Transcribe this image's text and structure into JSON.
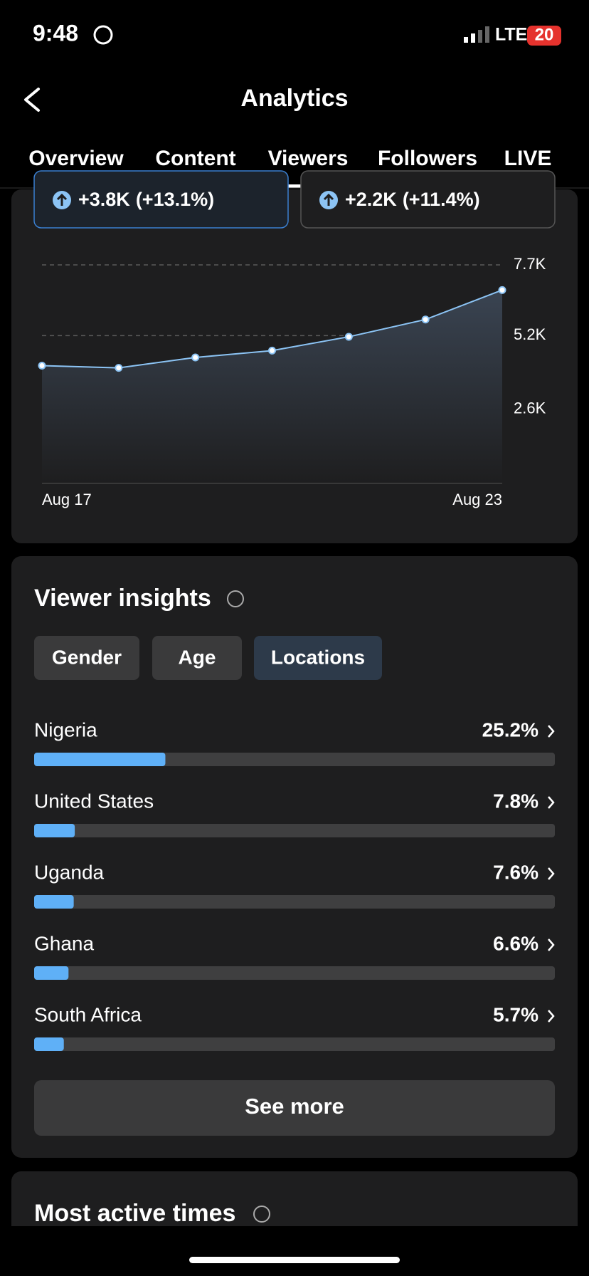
{
  "status": {
    "time": "9:48",
    "network": "LTE",
    "battery": "20"
  },
  "header": {
    "title": "Analytics"
  },
  "tabs": [
    "Overview",
    "Content",
    "Viewers",
    "Followers",
    "LIVE"
  ],
  "active_tab": 2,
  "stat_cards": [
    {
      "change": "+3.8K",
      "percent": "(+13.1%)"
    },
    {
      "change": "+2.2K",
      "percent": "(+11.4%)"
    }
  ],
  "chart_data": {
    "type": "line",
    "x": [
      "Aug 17",
      null,
      null,
      null,
      null,
      null,
      "Aug 23"
    ],
    "series": [
      {
        "name": "Viewers",
        "color": "#8cc4f5",
        "values": [
          4140,
          4060,
          4430,
          4670,
          5160,
          5770,
          6810
        ]
      }
    ],
    "ylim": [
      0,
      7700
    ],
    "yticks": [
      {
        "value": 2600,
        "label": "2.6K"
      },
      {
        "value": 5200,
        "label": "5.2K"
      },
      {
        "value": 7700,
        "label": "7.7K"
      }
    ],
    "grid": true
  },
  "insights": {
    "title": "Viewer insights",
    "filters": [
      "Gender",
      "Age",
      "Locations"
    ],
    "active_filter": 2,
    "locations": {
      "type": "bar",
      "categories": [
        "Nigeria",
        "United States",
        "Uganda",
        "Ghana",
        "South Africa"
      ],
      "values": [
        25.2,
        7.8,
        7.6,
        6.6,
        5.7
      ],
      "value_labels": [
        "25.2%",
        "7.8%",
        "7.6%",
        "6.6%",
        "5.7%"
      ],
      "xlim": [
        0,
        100
      ],
      "color": "#5fb0f7"
    },
    "button": "See more"
  },
  "next_section": {
    "title": "Most active times"
  }
}
